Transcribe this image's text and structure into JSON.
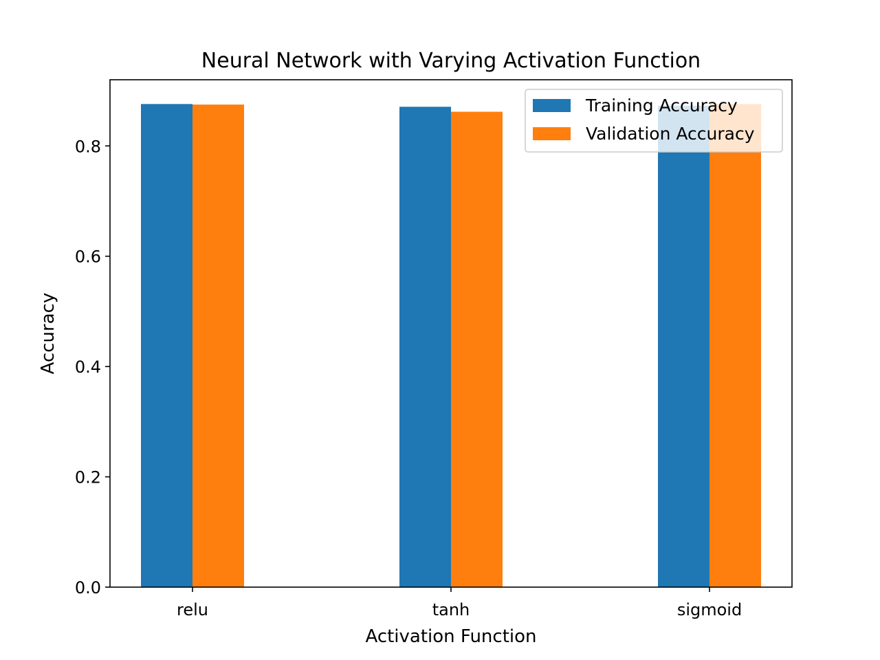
{
  "chart_data": {
    "type": "bar",
    "title": "Neural Network with Varying Activation Function",
    "xlabel": "Activation Function",
    "ylabel": "Accuracy",
    "categories": [
      "relu",
      "tanh",
      "sigmoid"
    ],
    "series": [
      {
        "name": "Training Accuracy",
        "values": [
          0.876,
          0.871,
          0.873
        ],
        "color": "#1f77b4"
      },
      {
        "name": "Validation Accuracy",
        "values": [
          0.875,
          0.862,
          0.876
        ],
        "color": "#ff7f0e"
      }
    ],
    "ylim": [
      0,
      0.92
    ],
    "yticks": [
      "0.0",
      "0.2",
      "0.4",
      "0.6",
      "0.8"
    ],
    "grid": false,
    "legend_position": "top-right"
  }
}
